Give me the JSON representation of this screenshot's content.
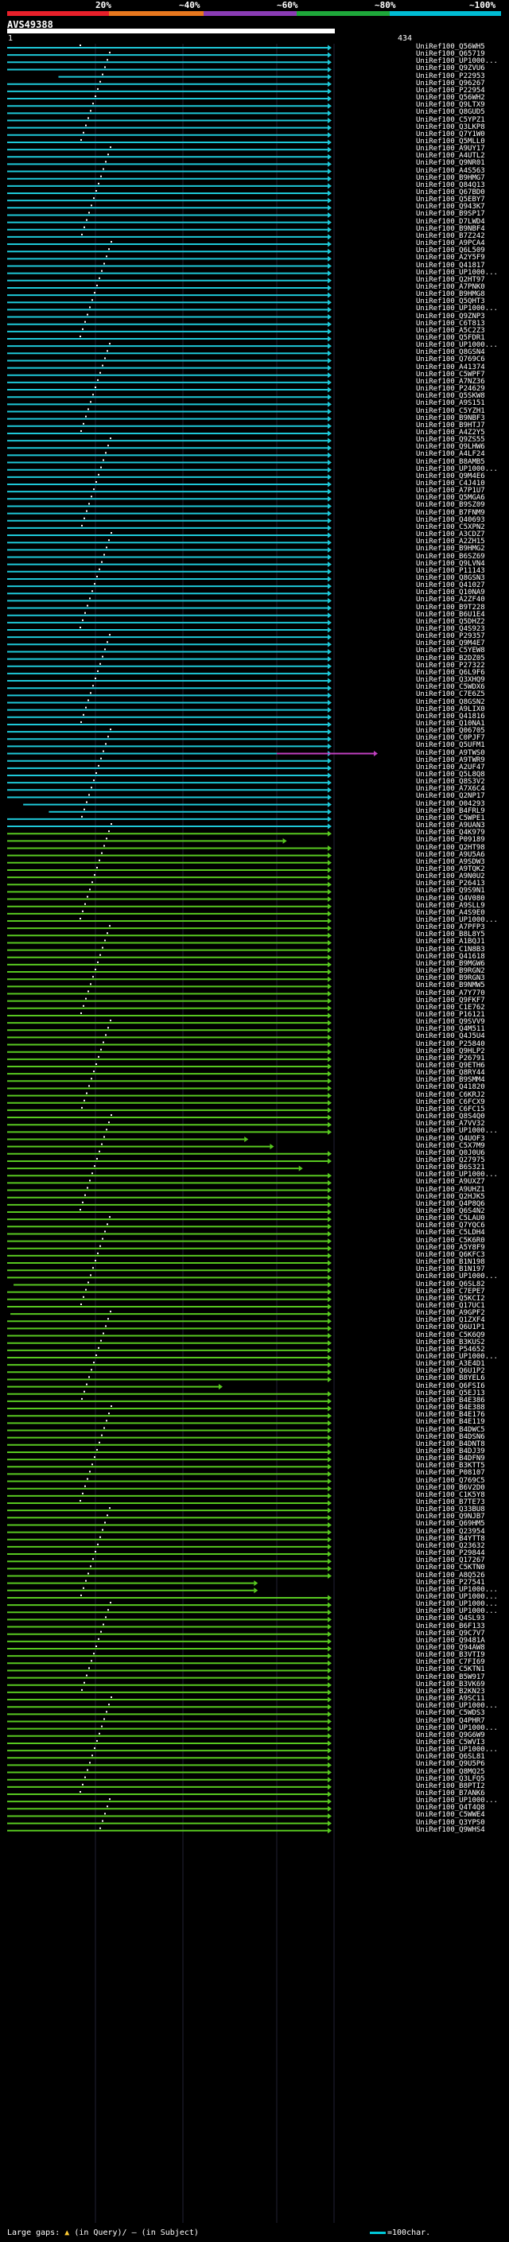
{
  "scale": {
    "ticks": [
      "20%",
      "~40%",
      "~60%",
      "~80%",
      "~100%"
    ],
    "colors": [
      "#e8202a",
      "#e8781e",
      "#8a3cb4",
      "#1ea83a",
      "#00bcd4"
    ]
  },
  "query": {
    "id": "AVS49388",
    "start": "1",
    "end": "434"
  },
  "colors": {
    "cyan": "#1ec8d8",
    "green": "#58c820",
    "magenta": "#c040c0",
    "bg": "#000000"
  },
  "hits": [
    {
      "label": "UniRef100_Q56WH5",
      "c": "cyan"
    },
    {
      "label": "UniRef100_Q65719",
      "c": "cyan"
    },
    {
      "label": "UniRef100_UP1000...",
      "c": "cyan"
    },
    {
      "label": "UniRef100_Q9ZVU6",
      "c": "cyan"
    },
    {
      "label": "UniRef100_P22953",
      "c": "cyan"
    },
    {
      "label": "UniRef100_Q96267",
      "c": "cyan"
    },
    {
      "label": "UniRef100_P22954",
      "c": "cyan"
    },
    {
      "label": "UniRef100_Q56WH2",
      "c": "cyan"
    },
    {
      "label": "UniRef100_Q9LTX9",
      "c": "cyan"
    },
    {
      "label": "UniRef100_Q8GUD5",
      "c": "cyan"
    },
    {
      "label": "UniRef100_C5YPZ1",
      "c": "cyan"
    },
    {
      "label": "UniRef100_Q3LKP8",
      "c": "cyan"
    },
    {
      "label": "UniRef100_Q7Y1W0",
      "c": "cyan"
    },
    {
      "label": "UniRef100_Q5MLL0",
      "c": "cyan"
    },
    {
      "label": "UniRef100_A9UY17",
      "c": "cyan"
    },
    {
      "label": "UniRef100_A4UTL2",
      "c": "cyan"
    },
    {
      "label": "UniRef100_Q9NR01",
      "c": "cyan"
    },
    {
      "label": "UniRef100_A4S563",
      "c": "cyan"
    },
    {
      "label": "UniRef100_B9HMG7",
      "c": "cyan"
    },
    {
      "label": "UniRef100_Q84Q13",
      "c": "cyan"
    },
    {
      "label": "UniRef100_Q67BD0",
      "c": "cyan"
    },
    {
      "label": "UniRef100_Q5EBY7",
      "c": "cyan"
    },
    {
      "label": "UniRef100_Q943K7",
      "c": "cyan"
    },
    {
      "label": "UniRef100_B9SP17",
      "c": "cyan"
    },
    {
      "label": "UniRef100_D7LWD4",
      "c": "cyan"
    },
    {
      "label": "UniRef100_B9NBF4",
      "c": "cyan"
    },
    {
      "label": "UniRef100_B7Z242",
      "c": "cyan"
    },
    {
      "label": "UniRef100_A9PCA4",
      "c": "cyan"
    },
    {
      "label": "UniRef100_Q6L509",
      "c": "cyan"
    },
    {
      "label": "UniRef100_A2Y5F9",
      "c": "cyan"
    },
    {
      "label": "UniRef100_Q41817",
      "c": "cyan"
    },
    {
      "label": "UniRef100_UP1000...",
      "c": "cyan"
    },
    {
      "label": "UniRef100_Q2HT97",
      "c": "cyan"
    },
    {
      "label": "UniRef100_A7PNK0",
      "c": "cyan"
    },
    {
      "label": "UniRef100_B9HMG8",
      "c": "cyan"
    },
    {
      "label": "UniRef100_Q5QHT3",
      "c": "cyan"
    },
    {
      "label": "UniRef100_UP1000...",
      "c": "cyan"
    },
    {
      "label": "UniRef100_Q9ZNP3",
      "c": "cyan"
    },
    {
      "label": "UniRef100_C6T813",
      "c": "cyan"
    },
    {
      "label": "UniRef100_A5C2Z3",
      "c": "cyan"
    },
    {
      "label": "UniRef100_Q5FDR1",
      "c": "cyan"
    },
    {
      "label": "UniRef100_UP1000...",
      "c": "cyan"
    },
    {
      "label": "UniRef100_Q8GSN4",
      "c": "cyan"
    },
    {
      "label": "UniRef100_Q769C6",
      "c": "cyan"
    },
    {
      "label": "UniRef100_A41374",
      "c": "cyan"
    },
    {
      "label": "UniRef100_C5WPF7",
      "c": "cyan"
    },
    {
      "label": "UniRef100_A7NZ36",
      "c": "cyan"
    },
    {
      "label": "UniRef100_P24629",
      "c": "cyan"
    },
    {
      "label": "UniRef100_Q5SKW8",
      "c": "cyan"
    },
    {
      "label": "UniRef100_A9S151",
      "c": "cyan"
    },
    {
      "label": "UniRef100_C5YZH1",
      "c": "cyan"
    },
    {
      "label": "UniRef100_B9NBF3",
      "c": "cyan"
    },
    {
      "label": "UniRef100_B9HTJ7",
      "c": "cyan"
    },
    {
      "label": "UniRef100_A4Z2Y5",
      "c": "cyan"
    },
    {
      "label": "UniRef100_Q9ZS55",
      "c": "cyan"
    },
    {
      "label": "UniRef100_Q9LHW6",
      "c": "cyan"
    },
    {
      "label": "UniRef100_A4LF24",
      "c": "cyan"
    },
    {
      "label": "UniRef100_B8AMB5",
      "c": "cyan"
    },
    {
      "label": "UniRef100_UP1000...",
      "c": "cyan"
    },
    {
      "label": "UniRef100_Q9M4E6",
      "c": "cyan"
    },
    {
      "label": "UniRef100_C4J410",
      "c": "cyan"
    },
    {
      "label": "UniRef100_A7P1U7",
      "c": "cyan"
    },
    {
      "label": "UniRef100_Q5MGA6",
      "c": "cyan"
    },
    {
      "label": "UniRef100_B9SZ09",
      "c": "cyan"
    },
    {
      "label": "UniRef100_B7FNM9",
      "c": "cyan"
    },
    {
      "label": "UniRef100_Q40693",
      "c": "cyan"
    },
    {
      "label": "UniRef100_C5XPN2",
      "c": "cyan"
    },
    {
      "label": "UniRef100_A3CDZ7",
      "c": "cyan"
    },
    {
      "label": "UniRef100_A2ZH15",
      "c": "cyan"
    },
    {
      "label": "UniRef100_B9HMG2",
      "c": "cyan"
    },
    {
      "label": "UniRef100_B6SZ69",
      "c": "cyan"
    },
    {
      "label": "UniRef100_Q9LVN4",
      "c": "cyan"
    },
    {
      "label": "UniRef100_P11143",
      "c": "cyan"
    },
    {
      "label": "UniRef100_Q8GSN3",
      "c": "cyan"
    },
    {
      "label": "UniRef100_Q41027",
      "c": "cyan"
    },
    {
      "label": "UniRef100_Q10NA9",
      "c": "cyan"
    },
    {
      "label": "UniRef100_A2ZF40",
      "c": "cyan"
    },
    {
      "label": "UniRef100_B9T228",
      "c": "cyan"
    },
    {
      "label": "UniRef100_B6U1E4",
      "c": "cyan"
    },
    {
      "label": "UniRef100_Q5DHZ2",
      "c": "cyan"
    },
    {
      "label": "UniRef100_Q4S923",
      "c": "cyan"
    },
    {
      "label": "UniRef100_P29357",
      "c": "cyan"
    },
    {
      "label": "UniRef100_Q9M4E7",
      "c": "cyan"
    },
    {
      "label": "UniRef100_C5YEW8",
      "c": "cyan"
    },
    {
      "label": "UniRef100_B2DZ05",
      "c": "cyan"
    },
    {
      "label": "UniRef100_P27322",
      "c": "cyan"
    },
    {
      "label": "UniRef100_Q6L9F6",
      "c": "cyan"
    },
    {
      "label": "UniRef100_Q3XHQ9",
      "c": "cyan"
    },
    {
      "label": "UniRef100_C5WDX6",
      "c": "cyan"
    },
    {
      "label": "UniRef100_C7E6Z5",
      "c": "cyan"
    },
    {
      "label": "UniRef100_Q8GSN2",
      "c": "cyan"
    },
    {
      "label": "UniRef100_A9LIX0",
      "c": "cyan"
    },
    {
      "label": "UniRef100_Q41816",
      "c": "cyan"
    },
    {
      "label": "UniRef100_Q10NA1",
      "c": "cyan"
    },
    {
      "label": "UniRef100_Q06705",
      "c": "cyan"
    },
    {
      "label": "UniRef100_C0PJF7",
      "c": "cyan"
    },
    {
      "label": "UniRef100_Q5UFM1",
      "c": "cyan"
    },
    {
      "label": "UniRef100_A9TWS0",
      "c": "cyan"
    },
    {
      "label": "UniRef100_A9TWR9",
      "c": "cyan"
    },
    {
      "label": "UniRef100_A2UF47",
      "c": "cyan"
    },
    {
      "label": "UniRef100_Q5L8Q8",
      "c": "cyan"
    },
    {
      "label": "UniRef100_Q8S3V2",
      "c": "cyan"
    },
    {
      "label": "UniRef100_A7X6C4",
      "c": "cyan"
    },
    {
      "label": "UniRef100_Q2NP17",
      "c": "cyan"
    },
    {
      "label": "UniRef100_O04293",
      "c": "cyan"
    },
    {
      "label": "UniRef100_B4FRL9",
      "c": "cyan"
    },
    {
      "label": "UniRef100_C5WPE1",
      "c": "cyan"
    },
    {
      "label": "UniRef100_A9UAN3",
      "c": "cyan"
    },
    {
      "label": "UniRef100_Q4K979",
      "c": "green"
    },
    {
      "label": "UniRef100_P09189",
      "c": "green"
    },
    {
      "label": "UniRef100_Q2HT98",
      "c": "green"
    },
    {
      "label": "UniRef100_A9U5A6",
      "c": "green"
    },
    {
      "label": "UniRef100_A9SDW3",
      "c": "green"
    },
    {
      "label": "UniRef100_A9TQK2",
      "c": "green"
    },
    {
      "label": "UniRef100_A9N0U2",
      "c": "green"
    },
    {
      "label": "UniRef100_P26413",
      "c": "green"
    },
    {
      "label": "UniRef100_Q9S9N1",
      "c": "green"
    },
    {
      "label": "UniRef100_Q4V080",
      "c": "green"
    },
    {
      "label": "UniRef100_A9SLL9",
      "c": "green"
    },
    {
      "label": "UniRef100_A4S9E0",
      "c": "green"
    },
    {
      "label": "UniRef100_UP1000...",
      "c": "green"
    },
    {
      "label": "UniRef100_A7PFP3",
      "c": "green"
    },
    {
      "label": "UniRef100_B8L8Y5",
      "c": "green"
    },
    {
      "label": "UniRef100_A1BQJ1",
      "c": "green"
    },
    {
      "label": "UniRef100_C1N8B3",
      "c": "green"
    },
    {
      "label": "UniRef100_Q41618",
      "c": "green"
    },
    {
      "label": "UniRef100_B9MGW6",
      "c": "green"
    },
    {
      "label": "UniRef100_B9RGN2",
      "c": "green"
    },
    {
      "label": "UniRef100_B9RGN3",
      "c": "green"
    },
    {
      "label": "UniRef100_B9NMW5",
      "c": "green"
    },
    {
      "label": "UniRef100_A7Y770",
      "c": "green"
    },
    {
      "label": "UniRef100_Q9FKF7",
      "c": "green"
    },
    {
      "label": "UniRef100_C1E762",
      "c": "green"
    },
    {
      "label": "UniRef100_P16121",
      "c": "green"
    },
    {
      "label": "UniRef100_Q9SVV9",
      "c": "green"
    },
    {
      "label": "UniRef100_Q4M511",
      "c": "green"
    },
    {
      "label": "UniRef100_Q4J5U4",
      "c": "green"
    },
    {
      "label": "UniRef100_P25840",
      "c": "green"
    },
    {
      "label": "UniRef100_Q9HLP2",
      "c": "green"
    },
    {
      "label": "UniRef100_P26791",
      "c": "green"
    },
    {
      "label": "UniRef100_Q9ETH6",
      "c": "green"
    },
    {
      "label": "UniRef100_Q8RY44",
      "c": "green"
    },
    {
      "label": "UniRef100_B9SMM4",
      "c": "green"
    },
    {
      "label": "UniRef100_Q41820",
      "c": "green"
    },
    {
      "label": "UniRef100_C6KRJ2",
      "c": "green"
    },
    {
      "label": "UniRef100_C6FCX9",
      "c": "green"
    },
    {
      "label": "UniRef100_C6FC15",
      "c": "green"
    },
    {
      "label": "UniRef100_Q8S4Q0",
      "c": "green"
    },
    {
      "label": "UniRef100_A7VV32",
      "c": "green"
    },
    {
      "label": "UniRef100_UP1000...",
      "c": "green"
    },
    {
      "label": "UniRef100_Q4UOF3",
      "c": "green"
    },
    {
      "label": "UniRef100_C5X7M9",
      "c": "green"
    },
    {
      "label": "UniRef100_Q0J0U6",
      "c": "green"
    },
    {
      "label": "UniRef100_Q27975",
      "c": "green"
    },
    {
      "label": "UniRef100_B6S321",
      "c": "green"
    },
    {
      "label": "UniRef100_UP1000...",
      "c": "green"
    },
    {
      "label": "UniRef100_A9UXZ7",
      "c": "green"
    },
    {
      "label": "UniRef100_A9UHZ1",
      "c": "green"
    },
    {
      "label": "UniRef100_Q2HJK5",
      "c": "green"
    },
    {
      "label": "UniRef100_Q4P8Q6",
      "c": "green"
    },
    {
      "label": "UniRef100_Q6S4N2",
      "c": "green"
    },
    {
      "label": "UniRef100_C5LAU0",
      "c": "green"
    },
    {
      "label": "UniRef100_Q7YQC6",
      "c": "green"
    },
    {
      "label": "UniRef100_C5LDH4",
      "c": "green"
    },
    {
      "label": "UniRef100_C5K6R0",
      "c": "green"
    },
    {
      "label": "UniRef100_A5Y8F9",
      "c": "green"
    },
    {
      "label": "UniRef100_Q6KFC3",
      "c": "green"
    },
    {
      "label": "UniRef100_B1N198",
      "c": "green"
    },
    {
      "label": "UniRef100_B1N197",
      "c": "green"
    },
    {
      "label": "UniRef100_UP1000...",
      "c": "green"
    },
    {
      "label": "UniRef100_Q6SL82",
      "c": "green"
    },
    {
      "label": "UniRef100_C7EPE7",
      "c": "green"
    },
    {
      "label": "UniRef100_Q5KCI2",
      "c": "green"
    },
    {
      "label": "UniRef100_Q17UC1",
      "c": "green"
    },
    {
      "label": "UniRef100_A9GPF2",
      "c": "green"
    },
    {
      "label": "UniRef100_Q1ZXF4",
      "c": "green"
    },
    {
      "label": "UniRef100_Q6U1P1",
      "c": "green"
    },
    {
      "label": "UniRef100_C5K6Q9",
      "c": "green"
    },
    {
      "label": "UniRef100_B3KUS2",
      "c": "green"
    },
    {
      "label": "UniRef100_P54652",
      "c": "green"
    },
    {
      "label": "UniRef100_UP1000...",
      "c": "green"
    },
    {
      "label": "UniRef100_A3E4D1",
      "c": "green"
    },
    {
      "label": "UniRef100_Q6U1P2",
      "c": "green"
    },
    {
      "label": "UniRef100_B8YEL6",
      "c": "green"
    },
    {
      "label": "UniRef100_Q6FSI6",
      "c": "green"
    },
    {
      "label": "UniRef100_Q5EJ13",
      "c": "green"
    },
    {
      "label": "UniRef100_B4E386",
      "c": "green"
    },
    {
      "label": "UniRef100_B4E388",
      "c": "green"
    },
    {
      "label": "UniRef100_B4E176",
      "c": "green"
    },
    {
      "label": "UniRef100_B4E119",
      "c": "green"
    },
    {
      "label": "UniRef100_B4DWC5",
      "c": "green"
    },
    {
      "label": "UniRef100_B4DSN6",
      "c": "green"
    },
    {
      "label": "UniRef100_B4DNT8",
      "c": "green"
    },
    {
      "label": "UniRef100_B4DJ39",
      "c": "green"
    },
    {
      "label": "UniRef100_B4DFN9",
      "c": "green"
    },
    {
      "label": "UniRef100_B3KTT5",
      "c": "green"
    },
    {
      "label": "UniRef100_P08107",
      "c": "green"
    },
    {
      "label": "UniRef100_Q769C5",
      "c": "green"
    },
    {
      "label": "UniRef100_B6V2D0",
      "c": "green"
    },
    {
      "label": "UniRef100_C1K5Y8",
      "c": "green"
    },
    {
      "label": "UniRef100_B7TE73",
      "c": "green"
    },
    {
      "label": "UniRef100_Q33BU8",
      "c": "green"
    },
    {
      "label": "UniRef100_Q9NJB7",
      "c": "green"
    },
    {
      "label": "UniRef100_Q69HM5",
      "c": "green"
    },
    {
      "label": "UniRef100_Q23954",
      "c": "green"
    },
    {
      "label": "UniRef100_B4YTT8",
      "c": "green"
    },
    {
      "label": "UniRef100_Q23632",
      "c": "green"
    },
    {
      "label": "UniRef100_P29844",
      "c": "green"
    },
    {
      "label": "UniRef100_Q17267",
      "c": "green"
    },
    {
      "label": "UniRef100_C5KTN0",
      "c": "green"
    },
    {
      "label": "UniRef100_A8Q526",
      "c": "green"
    },
    {
      "label": "UniRef100_P27541",
      "c": "green"
    },
    {
      "label": "UniRef100_UP1000...",
      "c": "green"
    },
    {
      "label": "UniRef100_UP1000...",
      "c": "green"
    },
    {
      "label": "UniRef100_UP1000...",
      "c": "green"
    },
    {
      "label": "UniRef100_UP1000...",
      "c": "green"
    },
    {
      "label": "UniRef100_Q4SL93",
      "c": "green"
    },
    {
      "label": "UniRef100_B6F133",
      "c": "green"
    },
    {
      "label": "UniRef100_Q9C7V7",
      "c": "green"
    },
    {
      "label": "UniRef100_Q9481A",
      "c": "green"
    },
    {
      "label": "UniRef100_Q94AW8",
      "c": "green"
    },
    {
      "label": "UniRef100_B3VTI9",
      "c": "green"
    },
    {
      "label": "UniRef100_C7FI69",
      "c": "green"
    },
    {
      "label": "UniRef100_C5KTN1",
      "c": "green"
    },
    {
      "label": "UniRef100_B5W917",
      "c": "green"
    },
    {
      "label": "UniRef100_B3VK69",
      "c": "green"
    },
    {
      "label": "UniRef100_B2KN23",
      "c": "green"
    },
    {
      "label": "UniRef100_A9SC11",
      "c": "green"
    },
    {
      "label": "UniRef100_UP1000...",
      "c": "green"
    },
    {
      "label": "UniRef100_C5WDS3",
      "c": "green"
    },
    {
      "label": "UniRef100_Q4PHR7",
      "c": "green"
    },
    {
      "label": "UniRef100_UP1000...",
      "c": "green"
    },
    {
      "label": "UniRef100_Q9G6W9",
      "c": "green"
    },
    {
      "label": "UniRef100_C5WVI3",
      "c": "green"
    },
    {
      "label": "UniRef100_UP1000...",
      "c": "green"
    },
    {
      "label": "UniRef100_Q6SL81",
      "c": "green"
    },
    {
      "label": "UniRef100_Q9U5P6",
      "c": "green"
    },
    {
      "label": "UniRef100_Q8MQ25",
      "c": "green"
    },
    {
      "label": "UniRef100_Q3LFQ5",
      "c": "green"
    },
    {
      "label": "UniRef100_B8PTI2",
      "c": "green"
    },
    {
      "label": "UniRef100_B7ANK6",
      "c": "green"
    },
    {
      "label": "UniRef100_UP1000...",
      "c": "green"
    },
    {
      "label": "UniRef100_Q4T4Q8",
      "c": "green"
    },
    {
      "label": "UniRef100_C5WWE4",
      "c": "green"
    },
    {
      "label": "UniRef100_Q3YPS0",
      "c": "green"
    },
    {
      "label": "UniRef100_Q9WHS4",
      "c": "green"
    }
  ],
  "special": {
    "magenta_row": 97,
    "short": {
      "150": 0.74,
      "151": 0.82,
      "109": 0.86,
      "154": 0.91,
      "184": 0.66,
      "211": 0.77,
      "212": 0.77,
      "247": 0.61,
      "276": 0.84
    },
    "left_start": {
      "4": 0.16,
      "104": 0.05,
      "105": 0.13,
      "170": 0.02,
      "174": 0.01,
      "246": 0.22,
      "276": 0.18
    }
  },
  "footer": {
    "large_gaps": "Large gaps:",
    "in_query": "(in Query)/",
    "in_subject": "(in Subject)",
    "scale_note": "=100char."
  }
}
